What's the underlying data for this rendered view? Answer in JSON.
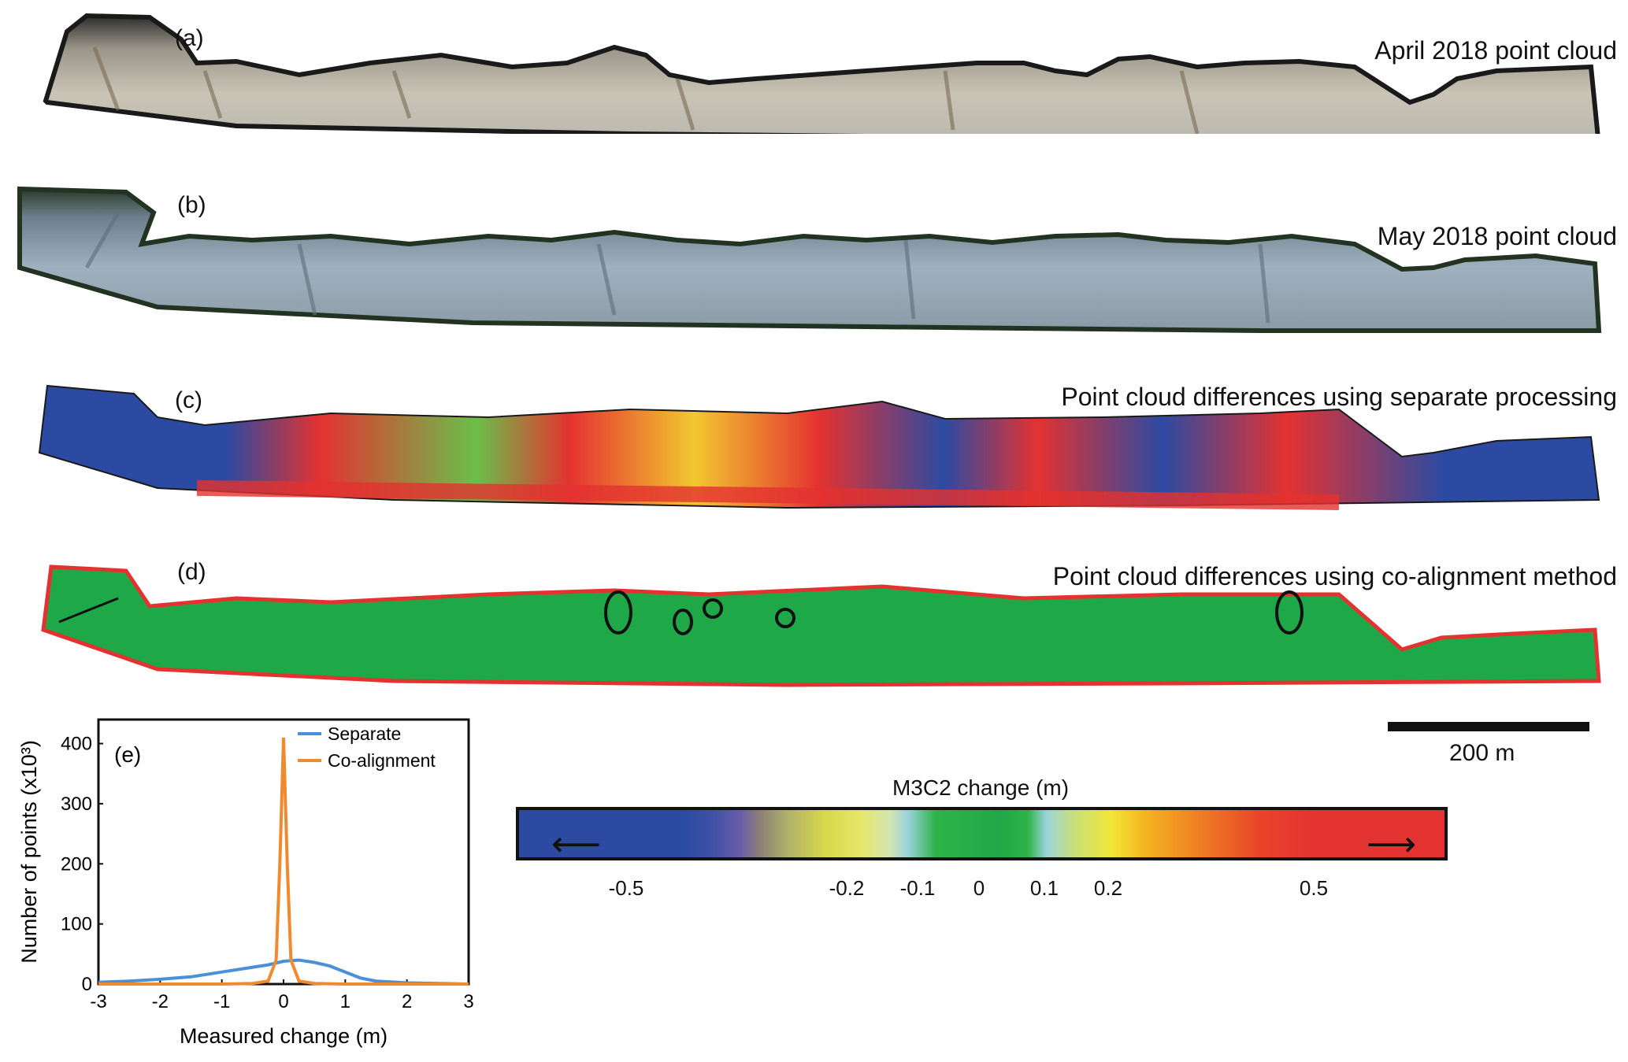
{
  "panels": [
    {
      "id": "a",
      "label": "(a)",
      "title": "April 2018 point cloud"
    },
    {
      "id": "b",
      "label": "(b)",
      "title": "May 2018 point cloud"
    },
    {
      "id": "c",
      "label": "(c)",
      "title": "Point cloud differences using separate processing"
    },
    {
      "id": "d",
      "label": "(d)",
      "title": "Point cloud differences using co-alignment method"
    }
  ],
  "scale_bar": {
    "label": "200 m"
  },
  "colorbar": {
    "title": "M3C2 change (m)",
    "ticks": [
      "-0.5",
      "-0.2",
      "-0.1",
      "0",
      "0.1",
      "0.2",
      "0.5"
    ],
    "colors": {
      "negative": "#2d4aa2",
      "zero": "#1fa848",
      "positive": "#e43230"
    }
  },
  "chart_data": {
    "type": "line",
    "panel_label": "(e)",
    "xlabel": "Measured change (m)",
    "ylabel": "Number of points (x10³)",
    "xlim": [
      -3,
      3
    ],
    "ylim": [
      0,
      440
    ],
    "xticks": [
      "-3",
      "-2",
      "-1",
      "0",
      "1",
      "2",
      "3"
    ],
    "yticks": [
      "0",
      "100",
      "200",
      "300",
      "400"
    ],
    "legend_position": "top-right",
    "series": [
      {
        "name": "Separate",
        "color": "#4a90d9",
        "x": [
          -3,
          -2.5,
          -2,
          -1.5,
          -1,
          -0.5,
          -0.25,
          0,
          0.25,
          0.5,
          0.75,
          1,
          1.25,
          1.5,
          2,
          2.5,
          3
        ],
        "y": [
          3,
          5,
          8,
          12,
          20,
          28,
          32,
          38,
          40,
          36,
          30,
          20,
          10,
          5,
          2,
          1,
          0
        ]
      },
      {
        "name": "Co-alignment",
        "color": "#f08a2e",
        "x": [
          -3,
          -1,
          -0.5,
          -0.25,
          -0.12,
          -0.06,
          0,
          0.06,
          0.12,
          0.25,
          0.5,
          1,
          3
        ],
        "y": [
          0,
          0,
          1,
          5,
          40,
          200,
          410,
          200,
          40,
          5,
          1,
          0,
          0
        ]
      }
    ]
  }
}
